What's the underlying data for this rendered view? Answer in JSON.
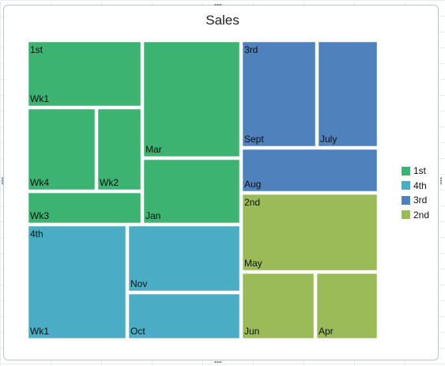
{
  "chart_data": {
    "type": "treemap",
    "title": "Sales",
    "legend": {
      "placement": "right",
      "entries": [
        {
          "label": "1st",
          "color": "#3cb371"
        },
        {
          "label": "4th",
          "color": "#4bacc6"
        },
        {
          "label": "3rd",
          "color": "#4f81bd"
        },
        {
          "label": "2nd",
          "color": "#9bbb59"
        }
      ]
    },
    "groups": [
      {
        "name": "1st",
        "color": "#3cb371",
        "items": [
          {
            "label": "Mar",
            "value": 170
          },
          {
            "label": "Wk1",
            "value": 100
          },
          {
            "label": "Jan",
            "value": 95
          },
          {
            "label": "Wk4",
            "value": 68
          },
          {
            "label": "Wk3",
            "value": 47
          },
          {
            "label": "Wk2",
            "value": 40
          }
        ]
      },
      {
        "name": "4th",
        "color": "#4bacc6",
        "items": [
          {
            "label": "Wk1",
            "value": 208
          },
          {
            "label": "Nov",
            "value": 138
          },
          {
            "label": "Oct",
            "value": 95
          }
        ]
      },
      {
        "name": "3rd",
        "color": "#4f81bd",
        "items": [
          {
            "label": "Sept",
            "value": 160
          },
          {
            "label": "July",
            "value": 130
          },
          {
            "label": "Aug",
            "value": 94
          }
        ]
      },
      {
        "name": "2nd",
        "color": "#9bbb59",
        "items": [
          {
            "label": "May",
            "value": 172
          },
          {
            "label": "Jun",
            "value": 139
          },
          {
            "label": "Apr",
            "value": 124
          }
        ]
      }
    ]
  }
}
